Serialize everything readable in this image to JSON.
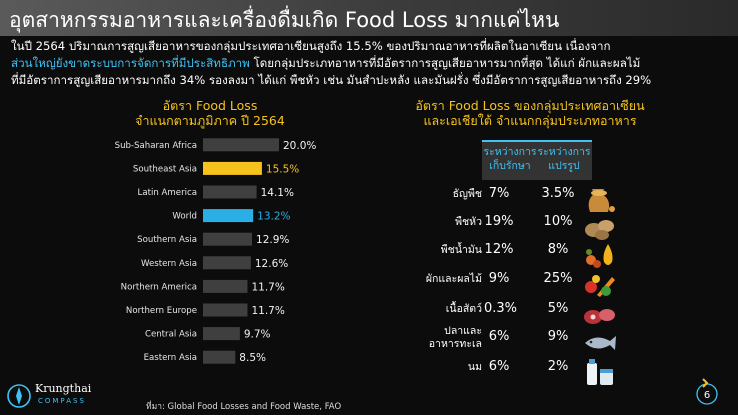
{
  "header": {
    "title": "อุตสาหกรรมอาหารและเครื่องดื่มเกิด Food Loss มากแค่ไหน"
  },
  "intro": {
    "line1": "ในปี 2564 ปริมาณการสูญเสียอาหารของกลุ่มประเทศอาเซียนสูงถึง 15.5% ของปริมาณอาหารที่ผลิตในอาเซียน เนื่องจาก",
    "line2_highlight": "ส่วนใหญ่ยังขาดระบบการจัดการที่มีประสิทธิภาพ",
    "line2_rest": " โดยกลุ่มประเภทอาหารที่มีอัตราการสูญเสียอาหารมากที่สุด ได้แก่ ผักและผลไม้",
    "line3": "ที่มีอัตราการสูญเสียอาหารมากถึง 34% รองลงมา ได้แก่ พืชหัว เช่น มันสำปะหลัง และมันฝรั่ง ซึ่งมีอัตราการสูญเสียอาหารถึง 29%"
  },
  "left_chart": {
    "title_line1": "อัตรา Food Loss",
    "title_line2": "จำแนกตามภูมิภาค ปี 2564"
  },
  "chart_data": {
    "type": "bar",
    "orientation": "horizontal",
    "title": "อัตรา Food Loss จำแนกตามภูมิภาค ปี 2564",
    "categories": [
      "Sub-Saharan Africa",
      "Southeast Asia",
      "Latin America",
      "World",
      "Southern Asia",
      "Western Asia",
      "Northern America",
      "Northern Europe",
      "Central Asia",
      "Eastern Asia"
    ],
    "values": [
      20.0,
      15.5,
      14.1,
      13.2,
      12.9,
      12.6,
      11.7,
      11.7,
      9.7,
      8.5
    ],
    "value_labels": [
      "20.0%",
      "15.5%",
      "14.1%",
      "13.2%",
      "12.9%",
      "12.6%",
      "11.7%",
      "11.7%",
      "9.7%",
      "8.5%"
    ],
    "unit": "%",
    "xlim": [
      0,
      20
    ],
    "grid": false,
    "colors": {
      "default": "#3f3f3f",
      "Southeast Asia": "#f6c31c",
      "World": "#29aee6"
    }
  },
  "right_table": {
    "title_line1": "อัตรา Food Loss ของกลุ่มประเทศอาเซียน",
    "title_line2": "และเอเชียใต้ จำแนกกลุ่มประเภทอาหาร",
    "columns": [
      {
        "line1": "ระหว่างการ",
        "line2": "เก็บรักษา"
      },
      {
        "line1": "ระหว่างการ",
        "line2": "แปรรูป"
      }
    ],
    "rows": [
      {
        "category": "ธัญพืช",
        "storage": "7%",
        "processing": "3.5%",
        "icon": "grain-sack-icon"
      },
      {
        "category": "พืชหัว",
        "storage": "19%",
        "processing": "10%",
        "icon": "potato-icon"
      },
      {
        "category": "พืชน้ำมัน",
        "storage": "12%",
        "processing": "8%",
        "icon": "oil-seeds-icon"
      },
      {
        "category": "ผักและผลไม้",
        "storage": "9%",
        "processing": "25%",
        "icon": "vegetables-icon"
      },
      {
        "category": "เนื้อสัตว์",
        "storage": "0.3%",
        "processing": "5%",
        "icon": "meat-icon"
      },
      {
        "category": "ปลาและ",
        "category_line2": "อาหารทะเล",
        "storage": "6%",
        "processing": "9%",
        "icon": "seafood-icon"
      },
      {
        "category": "นม",
        "storage": "6%",
        "processing": "2%",
        "icon": "milk-icon"
      }
    ]
  },
  "footer": {
    "source": "ที่มา: Global Food Losses and Food Waste, FAO",
    "logo_name": "Krungthai",
    "logo_sub": "COMPASS",
    "page_number": "6"
  },
  "colors": {
    "accent_yellow": "#f6c31c",
    "accent_blue": "#3ec3f5",
    "bar_default": "#3f3f3f",
    "background": "#0c0c0c"
  }
}
